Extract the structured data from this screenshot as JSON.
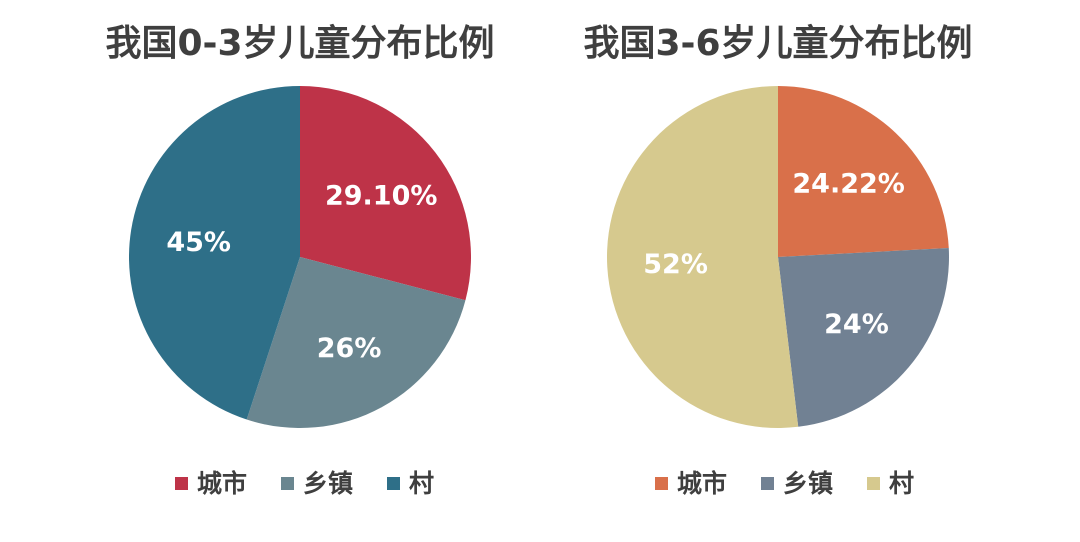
{
  "chart_data": [
    {
      "type": "pie",
      "title": "我国0-3岁儿童分布比例",
      "categories": [
        "城市",
        "乡镇",
        "村"
      ],
      "values": [
        29.1,
        26,
        45
      ],
      "labels": [
        "29.10%",
        "26%",
        "45%"
      ],
      "colors": [
        "#be3348",
        "#6a8690",
        "#2e6f88"
      ],
      "legend_position": "bottom"
    },
    {
      "type": "pie",
      "title": "我国3-6岁儿童分布比例",
      "categories": [
        "城市",
        "乡镇",
        "村"
      ],
      "values": [
        24.22,
        24,
        52
      ],
      "labels": [
        "24.22%",
        "24%",
        "52%"
      ],
      "colors": [
        "#d9704a",
        "#718193",
        "#d6c98e"
      ],
      "legend_position": "bottom"
    }
  ]
}
